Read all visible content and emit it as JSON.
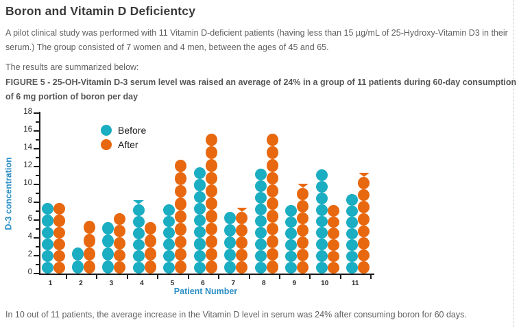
{
  "page": {
    "title": "Boron and Vitamin D Deficientcy",
    "intro": "A pilot clinical study was performed with 11 Vitamin D-deficient patients (having less than 15 µg/mL of 25-Hydroxy-Vitamin D3 in their serum.) The group consisted of 7 women and 4 men, between the ages of 45 and 65.",
    "results_line": "The results are summarized below:",
    "figure_caption": "FIGURE 5 - 25-OH-Vitamin D-3 serum level was raised an average of 24% in a group of 11 patients during 60-day consumption of 6 mg portion of boron per day",
    "footer_note": "In 10 out of 11 patients, the average increase in the Vitamin D level in serum was 24% after consuming boron for 60 days."
  },
  "chart_data": {
    "type": "bar",
    "variant": "stacked-dot-columns",
    "title": "",
    "xlabel": "Patient Number",
    "ylabel": "D-3 concentration",
    "ylim": [
      0,
      18
    ],
    "ytick_step": 2,
    "grid": false,
    "legend_position": "top-left-inside",
    "categories": [
      "1",
      "2",
      "3",
      "4",
      "5",
      "6",
      "7",
      "8",
      "9",
      "10",
      "11"
    ],
    "series": [
      {
        "name": "Before",
        "color": "#1badc2",
        "values": [
          7.9,
          2.9,
          5.8,
          8.2,
          7.8,
          11.9,
          6.9,
          11.8,
          7.7,
          11.7,
          8.9
        ],
        "dot_counts": [
          6,
          2,
          4,
          6,
          6,
          9,
          5,
          9,
          6,
          9,
          7
        ],
        "partial_top_marker": [
          false,
          false,
          false,
          true,
          false,
          false,
          false,
          false,
          false,
          false,
          false
        ]
      },
      {
        "name": "After",
        "color": "#e8680f",
        "values": [
          7.9,
          5.9,
          6.8,
          5.8,
          12.8,
          15.7,
          7.4,
          15.7,
          10.1,
          7.7,
          11.3
        ],
        "dot_counts": [
          6,
          4,
          5,
          4,
          9,
          11,
          5,
          11,
          7,
          6,
          8
        ],
        "partial_top_marker": [
          false,
          false,
          false,
          false,
          false,
          false,
          true,
          false,
          true,
          false,
          true
        ]
      }
    ]
  }
}
